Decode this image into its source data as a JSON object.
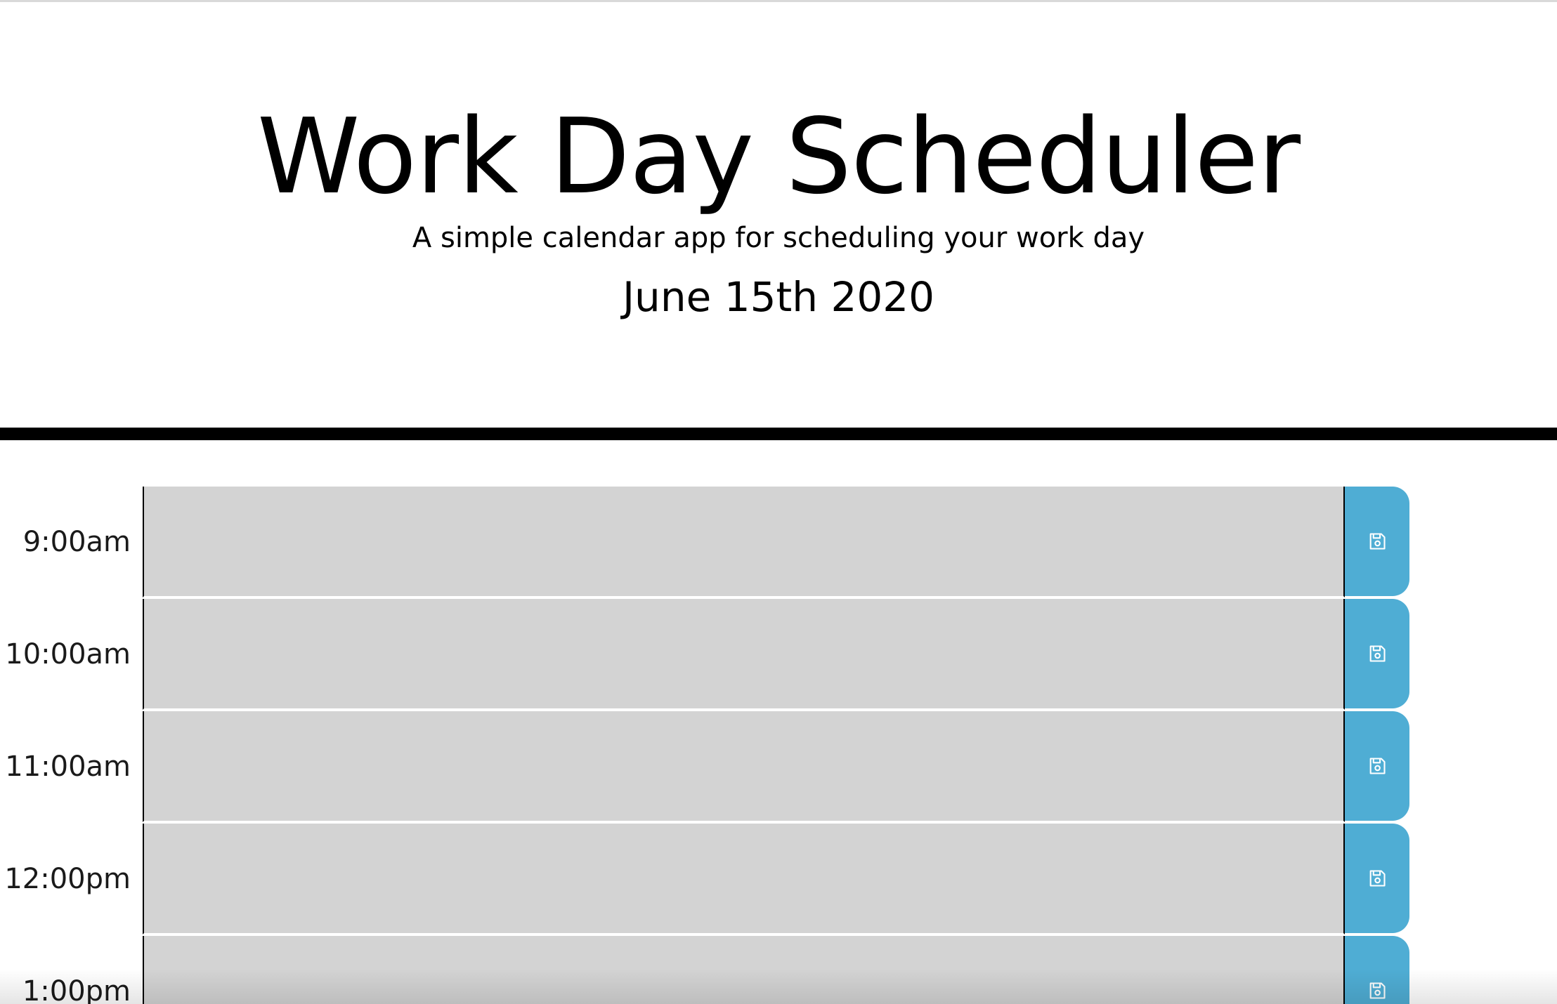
{
  "header": {
    "title": "Work Day Scheduler",
    "lead": "A simple calendar app for scheduling your work day",
    "current_day": "June 15th 2020"
  },
  "colors": {
    "past": "#d3d3d3",
    "save_button": "#4fadd4",
    "divider": "#000000"
  },
  "rows": [
    {
      "hour": "9:00am",
      "description": "",
      "save_icon": "floppy-disk-icon"
    },
    {
      "hour": "10:00am",
      "description": "",
      "save_icon": "floppy-disk-icon"
    },
    {
      "hour": "11:00am",
      "description": "",
      "save_icon": "floppy-disk-icon"
    },
    {
      "hour": "12:00pm",
      "description": "",
      "save_icon": "floppy-disk-icon"
    },
    {
      "hour": "1:00pm",
      "description": "",
      "save_icon": "floppy-disk-icon"
    }
  ]
}
